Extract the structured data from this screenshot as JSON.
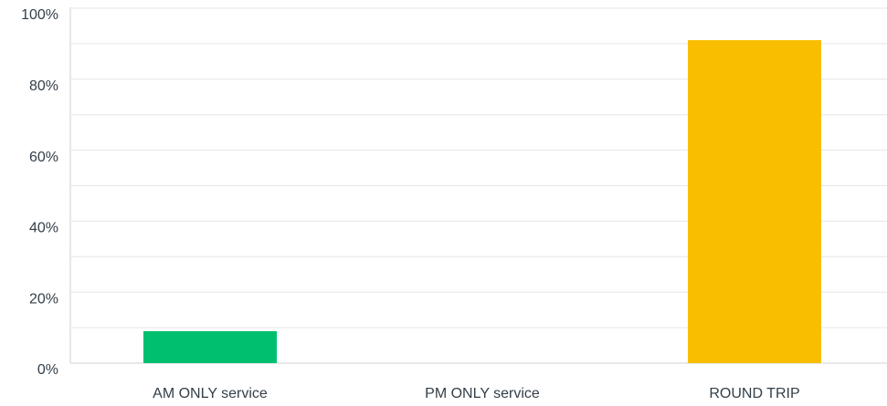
{
  "chart_data": {
    "type": "bar",
    "categories": [
      "AM ONLY service",
      "PM ONLY service",
      "ROUND TRIP"
    ],
    "values": [
      9,
      0,
      91
    ],
    "colors": [
      "#00bf6f",
      "#507cb6",
      "#f9be00"
    ],
    "ylim": [
      0,
      100
    ],
    "yticks": [
      {
        "value": 0,
        "label": "0%"
      },
      {
        "value": 20,
        "label": "20%"
      },
      {
        "value": 40,
        "label": "40%"
      },
      {
        "value": 60,
        "label": "60%"
      },
      {
        "value": 80,
        "label": "80%"
      },
      {
        "value": 100,
        "label": "100%"
      }
    ],
    "minor_yticks": [
      10,
      30,
      50,
      70,
      90
    ],
    "grid": true
  }
}
